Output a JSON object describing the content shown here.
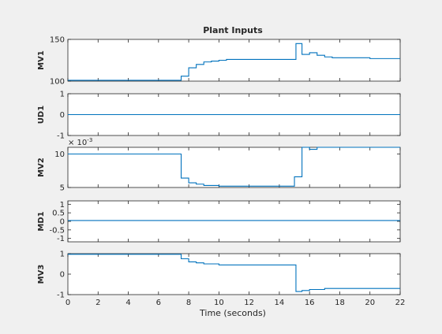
{
  "chart_data": {
    "type": "line",
    "title": "Plant Inputs",
    "xlabel": "Time (seconds)",
    "xlim": [
      0,
      22
    ],
    "x_ticks": [
      0,
      2,
      4,
      6,
      8,
      10,
      12,
      14,
      16,
      18,
      20,
      22
    ],
    "line_color": "#0072bd",
    "subplots": [
      {
        "ylabel": "MV1",
        "ylim": [
          100,
          150
        ],
        "y_ticks": [
          {
            "value": 100,
            "label": "100"
          },
          {
            "value": 150,
            "label": "150"
          }
        ],
        "exponent": "",
        "steps": [
          [
            0,
            101
          ],
          [
            7.4,
            101
          ],
          [
            7.5,
            106
          ],
          [
            8,
            116
          ],
          [
            8.5,
            120
          ],
          [
            9,
            123
          ],
          [
            9.5,
            124
          ],
          [
            10,
            125
          ],
          [
            10.5,
            126
          ],
          [
            15,
            126
          ],
          [
            15.1,
            145
          ],
          [
            15.5,
            132
          ],
          [
            16,
            134
          ],
          [
            16.5,
            131
          ],
          [
            17,
            129
          ],
          [
            17.5,
            128
          ],
          [
            20,
            127
          ],
          [
            22,
            127
          ]
        ]
      },
      {
        "ylabel": "UD1",
        "ylim": [
          -1,
          1
        ],
        "y_ticks": [
          {
            "value": -1,
            "label": "-1"
          },
          {
            "value": 0,
            "label": "0"
          },
          {
            "value": 1,
            "label": "1"
          }
        ],
        "exponent": "",
        "steps": [
          [
            0,
            0
          ],
          [
            22,
            0
          ]
        ]
      },
      {
        "ylabel": "MV2",
        "ylim": [
          0.005,
          0.011
        ],
        "y_ticks": [
          {
            "value": 0.005,
            "label": "5"
          },
          {
            "value": 0.01,
            "label": "10"
          }
        ],
        "exponent": "× 10",
        "exponent_power": "-3",
        "steps": [
          [
            0,
            0.01
          ],
          [
            7.4,
            0.01
          ],
          [
            7.5,
            0.0064
          ],
          [
            8,
            0.0057
          ],
          [
            8.5,
            0.0055
          ],
          [
            9,
            0.0053
          ],
          [
            10,
            0.0052
          ],
          [
            14.5,
            0.0052
          ],
          [
            15,
            0.0066
          ],
          [
            15.5,
            0.011
          ],
          [
            16,
            0.0107
          ],
          [
            16.5,
            0.011
          ],
          [
            22,
            0.011
          ]
        ]
      },
      {
        "ylabel": "MD1",
        "ylim": [
          -1.2,
          1.2
        ],
        "y_ticks": [
          {
            "value": -1,
            "label": "-1"
          },
          {
            "value": -0.5,
            "label": "-0.5"
          },
          {
            "value": 0,
            "label": "0"
          },
          {
            "value": 0.5,
            "label": "0.5"
          },
          {
            "value": 1,
            "label": "1"
          }
        ],
        "exponent": "",
        "steps": [
          [
            0,
            0.05
          ],
          [
            22,
            0.05
          ]
        ]
      },
      {
        "ylabel": "MV3",
        "ylim": [
          -1,
          1
        ],
        "y_ticks": [
          {
            "value": -1,
            "label": "-1"
          },
          {
            "value": 0,
            "label": "0"
          },
          {
            "value": 1,
            "label": "1"
          }
        ],
        "exponent": "",
        "steps": [
          [
            0,
            0.97
          ],
          [
            7.4,
            0.97
          ],
          [
            7.5,
            0.75
          ],
          [
            8,
            0.6
          ],
          [
            8.5,
            0.55
          ],
          [
            9,
            0.5
          ],
          [
            10,
            0.45
          ],
          [
            15,
            0.45
          ],
          [
            15.1,
            -0.85
          ],
          [
            15.5,
            -0.8
          ],
          [
            16,
            -0.75
          ],
          [
            17,
            -0.7
          ],
          [
            22,
            -0.7
          ]
        ]
      }
    ]
  }
}
